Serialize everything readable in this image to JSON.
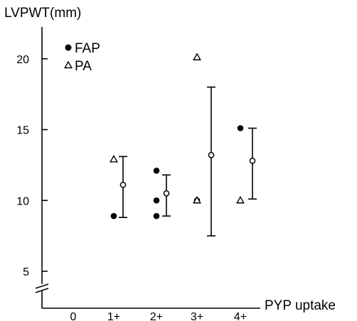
{
  "chart_data": {
    "type": "scatter",
    "ylabel": "LVPWT(mm)",
    "xlabel": "PYP uptake",
    "categories": [
      "0",
      "1+",
      "2+",
      "3+",
      "4+"
    ],
    "y_ticks": [
      5,
      10,
      15,
      20
    ],
    "ylim": [
      4,
      21
    ],
    "axis_break": true,
    "grid": false,
    "legend_position": "top-left",
    "series": [
      {
        "name": "FAP",
        "marker": "filled-circle",
        "points": [
          {
            "category": "1+",
            "y": 8.9
          },
          {
            "category": "2+",
            "y": 12.1
          },
          {
            "category": "2+",
            "y": 10.0
          },
          {
            "category": "2+",
            "y": 8.9
          },
          {
            "category": "3+",
            "y": 10.0
          },
          {
            "category": "4+",
            "y": 15.1
          }
        ]
      },
      {
        "name": "PA",
        "marker": "open-triangle",
        "points": [
          {
            "category": "1+",
            "y": 12.9
          },
          {
            "category": "3+",
            "y": 20.1
          },
          {
            "category": "3+",
            "y": 10.0
          },
          {
            "category": "4+",
            "y": 10.0
          }
        ]
      }
    ],
    "mean_sd": [
      {
        "category": "1+",
        "mean": 11.1,
        "upper": 13.1,
        "lower": 8.8
      },
      {
        "category": "2+",
        "mean": 10.5,
        "upper": 11.8,
        "lower": 8.9
      },
      {
        "category": "3+",
        "mean": 13.2,
        "upper": 18.0,
        "lower": 7.5
      },
      {
        "category": "4+",
        "mean": 12.8,
        "upper": 15.1,
        "lower": 10.1
      }
    ]
  }
}
